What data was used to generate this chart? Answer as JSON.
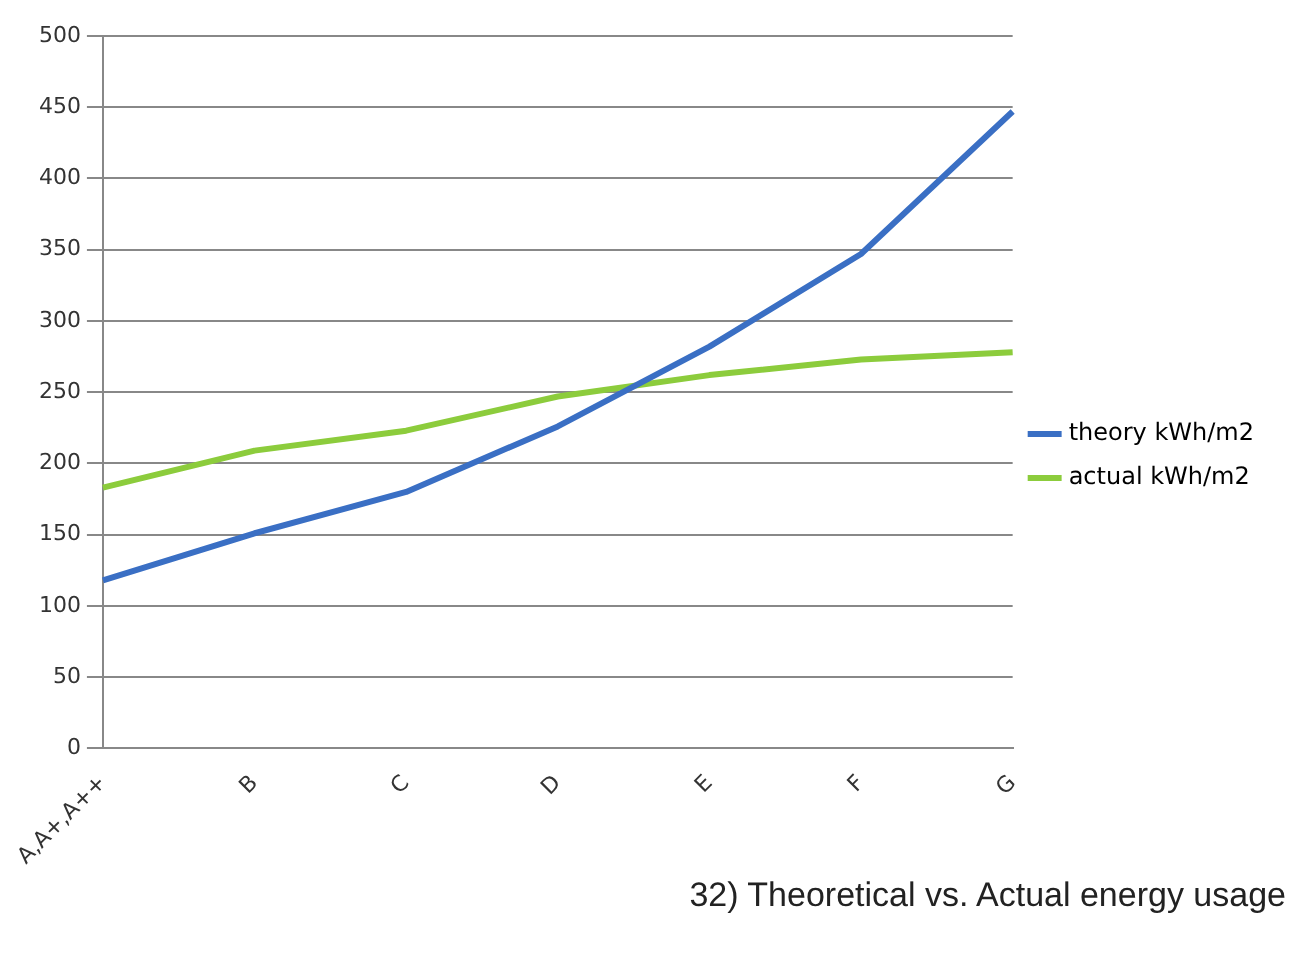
{
  "chart_data": {
    "type": "line",
    "categories": [
      "A,A+,A++",
      "B",
      "C",
      "D",
      "E",
      "F",
      "G"
    ],
    "series": [
      {
        "name": "theory kWh/m2",
        "color": "#3a6fc4",
        "values": [
          118,
          151,
          180,
          226,
          282,
          347,
          447
        ]
      },
      {
        "name": "actual kWh/m2",
        "color": "#8ccc3c",
        "values": [
          183,
          209,
          223,
          247,
          262,
          273,
          278
        ]
      }
    ],
    "ylim": [
      0,
      500
    ],
    "yticks": [
      0,
      50,
      100,
      150,
      200,
      250,
      300,
      350,
      400,
      450,
      500
    ],
    "grid": "y",
    "legend": "right",
    "marker": "none",
    "annotations": [
      "32) Theoretical vs. Actual energy usage"
    ]
  }
}
